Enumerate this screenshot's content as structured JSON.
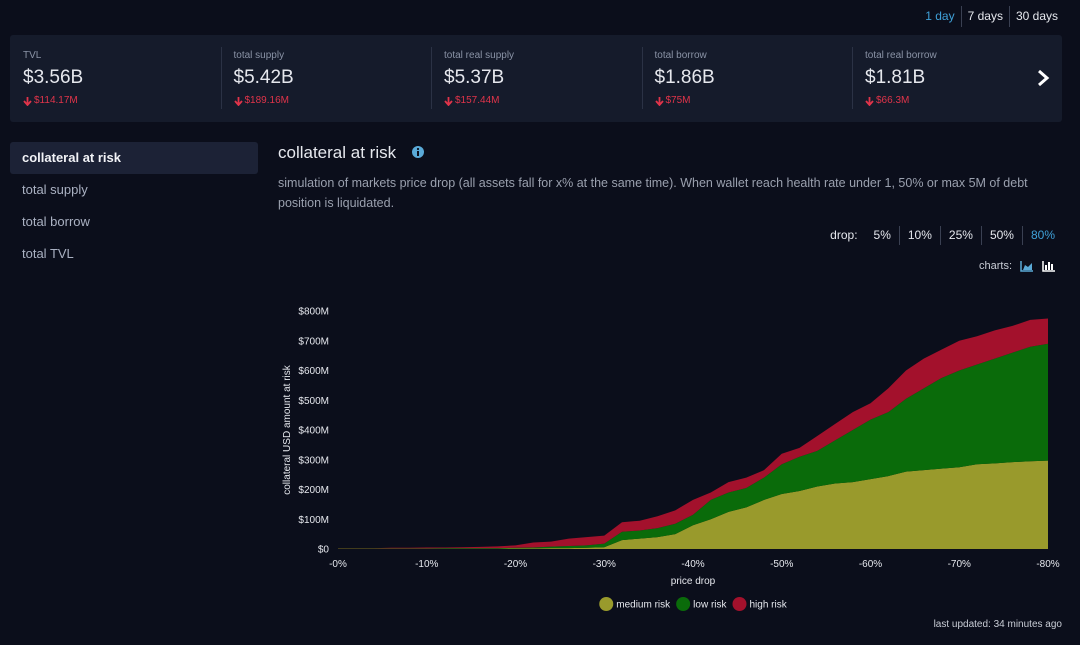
{
  "header": {
    "periods": [
      "1 day",
      "7 days",
      "30 days"
    ]
  },
  "stats": [
    {
      "label": "TVL",
      "value": "$3.56B",
      "change": "$114.17M"
    },
    {
      "label": "total supply",
      "value": "$5.42B",
      "change": "$189.16M"
    },
    {
      "label": "total real supply",
      "value": "$5.37B",
      "change": "$157.44M"
    },
    {
      "label": "total borrow",
      "value": "$1.86B",
      "change": "$75M"
    },
    {
      "label": "total real borrow",
      "value": "$1.81B",
      "change": "$66.3M"
    }
  ],
  "sidebar": [
    "collateral at risk",
    "total supply",
    "total borrow",
    "total TVL"
  ],
  "panel": {
    "title": "collateral at risk",
    "description": "simulation of markets price drop (all assets fall for x% at the same time). When wallet reach health rate under 1, 50% or max 5M of debt position is liquidated.",
    "drop_label": "drop:",
    "drop_options": [
      "5%",
      "10%",
      "25%",
      "50%",
      "80%"
    ],
    "charts_label": "charts:"
  },
  "chart_data": {
    "type": "area",
    "stacked": true,
    "x_label": "price drop",
    "y_label": "collateral USD amount at risk",
    "x": [
      0,
      2,
      4,
      6,
      8,
      10,
      12,
      14,
      16,
      18,
      20,
      22,
      24,
      26,
      28,
      30,
      32,
      34,
      36,
      38,
      40,
      42,
      44,
      46,
      48,
      50,
      52,
      54,
      56,
      58,
      60,
      62,
      64,
      66,
      68,
      70,
      72,
      74,
      76,
      78,
      80
    ],
    "xlim": [
      0,
      80
    ],
    "xticks": [
      {
        "value": 0,
        "label": "-0%"
      },
      {
        "value": 10,
        "label": "-10%"
      },
      {
        "value": 20,
        "label": "-20%"
      },
      {
        "value": 30,
        "label": "-30%"
      },
      {
        "value": 40,
        "label": "-40%"
      },
      {
        "value": 50,
        "label": "-50%"
      },
      {
        "value": 60,
        "label": "-60%"
      },
      {
        "value": 70,
        "label": "-70%"
      },
      {
        "value": 80,
        "label": "-80%"
      }
    ],
    "ylim": [
      0,
      800000000.0
    ],
    "yticks": [
      {
        "value": 0,
        "label": "$0"
      },
      {
        "value": 100000000.0,
        "label": "$100M"
      },
      {
        "value": 200000000.0,
        "label": "$200M"
      },
      {
        "value": 300000000.0,
        "label": "$300M"
      },
      {
        "value": 400000000.0,
        "label": "$400M"
      },
      {
        "value": 500000000.0,
        "label": "$500M"
      },
      {
        "value": 600000000.0,
        "label": "$600M"
      },
      {
        "value": 700000000.0,
        "label": "$700M"
      },
      {
        "value": 800000000.0,
        "label": "$800M"
      }
    ],
    "legend": "bottom",
    "series": [
      {
        "name": "medium risk",
        "color": "#999a2c",
        "values": [
          1000000.0,
          1000000.0,
          1000000.0,
          1000000.0,
          1000000.0,
          1000000.0,
          1000000.0,
          1000000.0,
          1000000.0,
          1000000.0,
          2000000.0,
          2000000.0,
          3000000.0,
          3000000.0,
          4000000.0,
          6000000.0,
          30000000.0,
          35000000.0,
          40000000.0,
          50000000.0,
          80000000.0,
          100000000.0,
          125000000.0,
          140000000.0,
          165000000.0,
          185000000.0,
          195000000.0,
          210000000.0,
          220000000.0,
          225000000.0,
          235000000.0,
          245000000.0,
          260000000.0,
          265000000.0,
          270000000.0,
          275000000.0,
          285000000.0,
          288000000.0,
          292000000.0,
          295000000.0,
          297000000.0
        ]
      },
      {
        "name": "low risk",
        "color": "#0a6b0a",
        "values": [
          1000000.0,
          1000000.0,
          1000000.0,
          1000000.0,
          1000000.0,
          1000000.0,
          2000000.0,
          2000000.0,
          2000000.0,
          2000000.0,
          2000000.0,
          3000000.0,
          5000000.0,
          7000000.0,
          8000000.0,
          12000000.0,
          28000000.0,
          27000000.0,
          30000000.0,
          35000000.0,
          35000000.0,
          65000000.0,
          65000000.0,
          65000000.0,
          75000000.0,
          100000000.0,
          115000000.0,
          120000000.0,
          145000000.0,
          175000000.0,
          200000000.0,
          215000000.0,
          245000000.0,
          275000000.0,
          305000000.0,
          325000000.0,
          335000000.0,
          352000000.0,
          368000000.0,
          385000000.0,
          393000000.0
        ]
      },
      {
        "name": "high risk",
        "color": "#a3112c",
        "values": [
          1000000.0,
          1000000.0,
          1000000.0,
          2000000.0,
          2000000.0,
          3000000.0,
          2000000.0,
          3000000.0,
          4000000.0,
          6000000.0,
          8000000.0,
          17000000.0,
          17000000.0,
          25000000.0,
          28000000.0,
          27000000.0,
          32000000.0,
          33000000.0,
          40000000.0,
          45000000.0,
          50000000.0,
          25000000.0,
          35000000.0,
          35000000.0,
          25000000.0,
          35000000.0,
          30000000.0,
          50000000.0,
          55000000.0,
          60000000.0,
          55000000.0,
          80000000.0,
          95000000.0,
          100000000.0,
          95000000.0,
          100000000.0,
          95000000.0,
          95000000.0,
          90000000.0,
          90000000.0,
          85000000.0
        ]
      }
    ]
  },
  "footer": {
    "last_updated": "last updated: 34 minutes ago"
  }
}
